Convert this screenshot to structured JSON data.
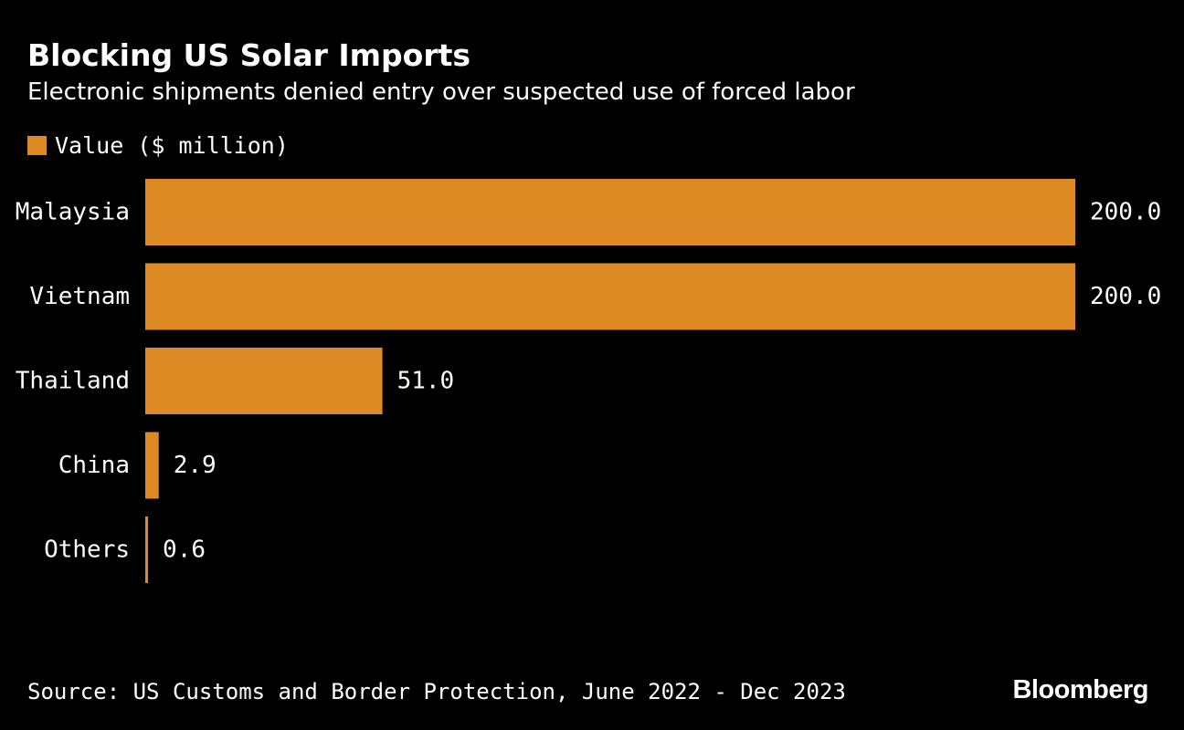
{
  "header": {
    "title": "Blocking US Solar Imports",
    "subtitle": "Electronic shipments denied entry over suspected use of forced labor"
  },
  "legend": {
    "label": "Value ($ million)",
    "color": "#DE8A24"
  },
  "footer": {
    "source": "Source: US Customs and Border Protection, June 2022 - Dec 2023",
    "brand": "Bloomberg"
  },
  "chart_data": {
    "type": "bar",
    "orientation": "horizontal",
    "title": "Blocking US Solar Imports",
    "subtitle": "Electronic shipments denied entry over suspected use of forced labor",
    "categories": [
      "Malaysia",
      "Vietnam",
      "Thailand",
      "China",
      "Others"
    ],
    "values": [
      200.0,
      200.0,
      51.0,
      2.9,
      0.6
    ],
    "value_labels": [
      "200.0",
      "200.0",
      "51.0",
      "2.9",
      "0.6"
    ],
    "series": [
      {
        "name": "Value ($ million)",
        "values": [
          200.0,
          200.0,
          51.0,
          2.9,
          0.6
        ],
        "color": "#DE8A24"
      }
    ],
    "xlabel": "",
    "ylabel": "",
    "xlim": [
      0,
      200
    ],
    "grid": false,
    "legend_position": "top-left"
  }
}
